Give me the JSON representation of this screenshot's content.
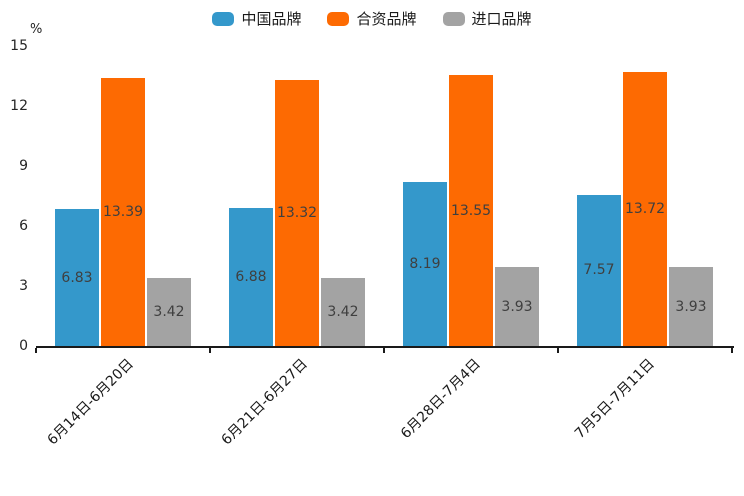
{
  "chart_data": {
    "type": "bar",
    "title": "",
    "ylabel": "%",
    "xlabel": "",
    "ylim": [
      0,
      15
    ],
    "yticks": [
      0,
      3,
      6,
      9,
      12,
      15
    ],
    "grid": false,
    "legend_position": "top-center",
    "value_labels": "centered-inside-bars",
    "x_label_rotation_deg": 45,
    "categories": [
      "6月14日-6月20日",
      "6月21日-6月27日",
      "6月28日-7月4日",
      "7月5日-7月11日"
    ],
    "series": [
      {
        "name": "中国品牌",
        "color": "#3498cb",
        "values": [
          6.83,
          6.88,
          8.19,
          7.57
        ]
      },
      {
        "name": "合资品牌",
        "color": "#fd6a02",
        "values": [
          13.39,
          13.32,
          13.55,
          13.72
        ]
      },
      {
        "name": "进口品牌",
        "color": "#a3a3a3",
        "values": [
          3.42,
          3.42,
          3.93,
          3.93
        ]
      }
    ],
    "colors": {
      "axis": "#1a1a1a",
      "tick_text": "#262626",
      "value_label_text": "#3f3f3f",
      "background": "#ffffff"
    }
  }
}
